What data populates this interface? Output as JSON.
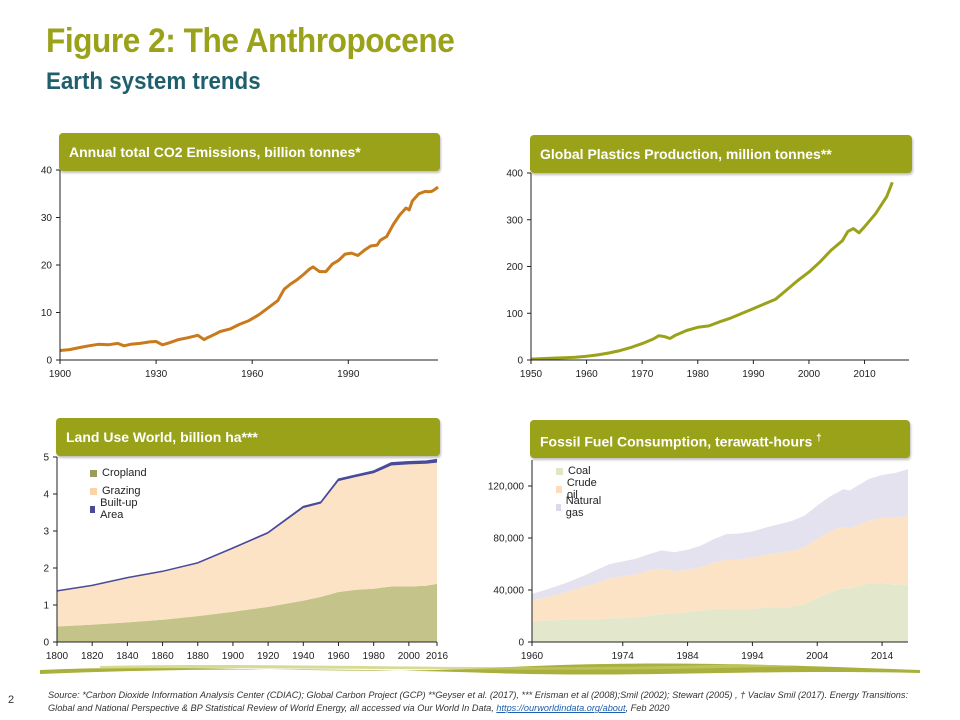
{
  "header": {
    "title": "Figure 2: The Anthropocene",
    "subtitle": "Earth system trends"
  },
  "colors": {
    "olive": "#9aa21a",
    "teal": "#1f5f6b",
    "co2_line": "#c87a1c",
    "plastics_line": "#9aa21a",
    "cropland": "#c4c48a",
    "grazing": "#fde3c5",
    "builtup": "#4a4a9a",
    "coal": "#e3e8cc",
    "crude_oil": "#fde3c5",
    "natural_gas": "#e4e2ee"
  },
  "panels": {
    "co2": {
      "banner": "Annual total CO2 Emissions, billion tonnes*"
    },
    "plastics": {
      "banner": "Global Plastics Production, million tonnes**"
    },
    "land": {
      "banner": "Land Use World, billion ha***"
    },
    "fossil": {
      "banner": "Fossil Fuel Consumption, terawatt-hours",
      "banner_mark": "†"
    }
  },
  "footer": {
    "page_number": "2",
    "source_text": "Source: *Carbon Dioxide Information Analysis Center (CDIAC); Global Carbon Project (GCP) **Geyser et al. (2017), *** Erisman et al (2008);Smil (2002); Stewart (2005) , † Vaclav Smil (2017). Energy Transitions: Global and National Perspective & BP Statistical Review of World Energy, all accessed via Our World In Data,",
    "source_link": "https://ourworldindata.org/about",
    "source_tail": ", Feb 2020"
  },
  "chart_data": [
    {
      "type": "line",
      "title": "Annual total CO2 Emissions, billion tonnes*",
      "xlim": [
        1900,
        2018
      ],
      "ylim": [
        0,
        40
      ],
      "xticks": [
        "1900",
        "1930",
        "1960",
        "1990"
      ],
      "xtick_values": [
        1900,
        1930,
        1960,
        1990
      ],
      "yticks": [
        "0",
        "10",
        "20",
        "30",
        "40"
      ],
      "ytick_values": [
        0,
        10,
        20,
        30,
        40
      ],
      "grid": false,
      "series": [
        {
          "x": [
            1900,
            1903,
            1906,
            1909,
            1912,
            1915,
            1918,
            1920,
            1922,
            1925,
            1928,
            1930,
            1932,
            1934,
            1937,
            1940,
            1943,
            1945,
            1946,
            1948,
            1950,
            1953,
            1956,
            1959,
            1962,
            1965,
            1968,
            1970,
            1972,
            1974,
            1976,
            1978,
            1979,
            1981,
            1983,
            1985,
            1987,
            1989,
            1991,
            1993,
            1995,
            1997,
            1999,
            2000,
            2002,
            2004,
            2006,
            2008,
            2009,
            2010,
            2012,
            2014,
            2015,
            2016,
            2017,
            2018
          ],
          "y": [
            2.0,
            2.2,
            2.6,
            3.0,
            3.3,
            3.2,
            3.5,
            3.0,
            3.3,
            3.5,
            3.8,
            3.9,
            3.2,
            3.6,
            4.3,
            4.7,
            5.2,
            4.3,
            4.7,
            5.3,
            6.0,
            6.5,
            7.5,
            8.3,
            9.5,
            11.0,
            12.5,
            14.9,
            16.0,
            16.9,
            18.0,
            19.2,
            19.6,
            18.6,
            18.6,
            20.2,
            21.0,
            22.3,
            22.5,
            22.0,
            23.1,
            24.0,
            24.2,
            25.2,
            26.0,
            28.5,
            30.5,
            32.0,
            31.6,
            33.5,
            35.0,
            35.5,
            35.4,
            35.5,
            35.9,
            36.4
          ]
        }
      ]
    },
    {
      "type": "line",
      "title": "Global Plastics Production, million tonnes**",
      "xlim": [
        1950,
        2018
      ],
      "ylim": [
        0,
        400
      ],
      "xticks": [
        "1950",
        "1960",
        "1970",
        "1980",
        "1990",
        "2000",
        "2010"
      ],
      "xtick_values": [
        1950,
        1960,
        1970,
        1980,
        1990,
        2000,
        2010
      ],
      "yticks": [
        "0",
        "100",
        "200",
        "300",
        "400"
      ],
      "ytick_values": [
        0,
        100,
        200,
        300,
        400
      ],
      "grid": false,
      "series": [
        {
          "x": [
            1950,
            1952,
            1954,
            1956,
            1958,
            1960,
            1962,
            1964,
            1966,
            1968,
            1970,
            1972,
            1973,
            1974,
            1975,
            1976,
            1978,
            1980,
            1982,
            1984,
            1986,
            1988,
            1990,
            1992,
            1994,
            1996,
            1998,
            2000,
            2002,
            2004,
            2006,
            2007,
            2008,
            2009,
            2010,
            2012,
            2014,
            2015
          ],
          "y": [
            2,
            3,
            4,
            5,
            6,
            8,
            11,
            15,
            20,
            27,
            35,
            45,
            52,
            50,
            46,
            53,
            63,
            70,
            73,
            82,
            90,
            100,
            110,
            120,
            130,
            150,
            170,
            188,
            210,
            235,
            255,
            275,
            281,
            272,
            285,
            313,
            350,
            380
          ]
        }
      ]
    },
    {
      "type": "area",
      "title": "Land Use World, billion ha***",
      "xlim": [
        1800,
        2016
      ],
      "ylim": [
        0,
        5
      ],
      "xticks": [
        "1800",
        "1820",
        "1840",
        "1860",
        "1880",
        "1900",
        "1920",
        "1940",
        "1960",
        "1980",
        "2000",
        "2016"
      ],
      "xtick_values": [
        1800,
        1820,
        1840,
        1860,
        1880,
        1900,
        1920,
        1940,
        1960,
        1980,
        2000,
        2016
      ],
      "yticks": [
        "0",
        "1",
        "2",
        "3",
        "4",
        "5"
      ],
      "ytick_values": [
        0,
        1,
        2,
        3,
        4,
        5
      ],
      "legend_position": "top-left",
      "x": [
        1800,
        1820,
        1840,
        1860,
        1880,
        1900,
        1920,
        1940,
        1950,
        1960,
        1970,
        1980,
        1990,
        2000,
        2010,
        2016
      ],
      "series": [
        {
          "name": "Cropland",
          "values": [
            0.42,
            0.47,
            0.53,
            0.6,
            0.7,
            0.82,
            0.95,
            1.12,
            1.22,
            1.35,
            1.41,
            1.44,
            1.5,
            1.5,
            1.52,
            1.57
          ]
        },
        {
          "name": "Grazing",
          "values": [
            0.95,
            1.05,
            1.2,
            1.3,
            1.42,
            1.7,
            1.98,
            2.5,
            2.52,
            3.0,
            3.05,
            3.12,
            3.27,
            3.3,
            3.3,
            3.28
          ]
        },
        {
          "name": "Built-up Area",
          "values": [
            0.01,
            0.01,
            0.01,
            0.01,
            0.02,
            0.02,
            0.03,
            0.04,
            0.04,
            0.05,
            0.05,
            0.06,
            0.07,
            0.07,
            0.07,
            0.08
          ]
        }
      ]
    },
    {
      "type": "area",
      "title": "Fossil Fuel Consumption, terawatt-hours †",
      "xlim": [
        1960,
        2018
      ],
      "ylim": [
        0,
        140000
      ],
      "xticks": [
        "1960",
        "1974",
        "1984",
        "1994",
        "2004",
        "2014"
      ],
      "xtick_values": [
        1960,
        1974,
        1984,
        1994,
        2004,
        2014
      ],
      "yticks": [
        "0",
        "40,000",
        "80,000",
        "120,000"
      ],
      "ytick_values": [
        0,
        40000,
        80000,
        120000
      ],
      "legend_position": "top-left",
      "x": [
        1960,
        1962,
        1965,
        1968,
        1970,
        1972,
        1974,
        1976,
        1978,
        1980,
        1982,
        1984,
        1986,
        1988,
        1990,
        1992,
        1994,
        1996,
        1998,
        2000,
        2002,
        2004,
        2006,
        2008,
        2009,
        2010,
        2012,
        2014,
        2016,
        2018
      ],
      "series": [
        {
          "name": "Coal",
          "values": [
            16000,
            16500,
            17000,
            17500,
            17500,
            18000,
            18500,
            19000,
            20000,
            21500,
            22000,
            23000,
            24000,
            25500,
            25500,
            25000,
            25500,
            26500,
            26500,
            27000,
            29000,
            34000,
            38000,
            41500,
            41000,
            42500,
            45000,
            45500,
            44000,
            44500
          ]
        },
        {
          "name": "Crude oil",
          "values": [
            16000,
            17500,
            21000,
            25000,
            28000,
            31000,
            32000,
            33000,
            35000,
            35000,
            32500,
            32500,
            33500,
            35500,
            38000,
            38500,
            39500,
            40500,
            42000,
            43000,
            44000,
            45500,
            47000,
            47500,
            46500,
            47000,
            48500,
            50000,
            51500,
            52500
          ]
        },
        {
          "name": "Natural gas",
          "values": [
            5000,
            6000,
            7000,
            8500,
            10000,
            11000,
            11500,
            12000,
            12500,
            14000,
            14500,
            15500,
            16500,
            18000,
            19500,
            20000,
            20000,
            21000,
            22000,
            23000,
            24000,
            25500,
            27000,
            28500,
            29000,
            30000,
            32000,
            33000,
            34500,
            36000
          ]
        }
      ]
    }
  ]
}
